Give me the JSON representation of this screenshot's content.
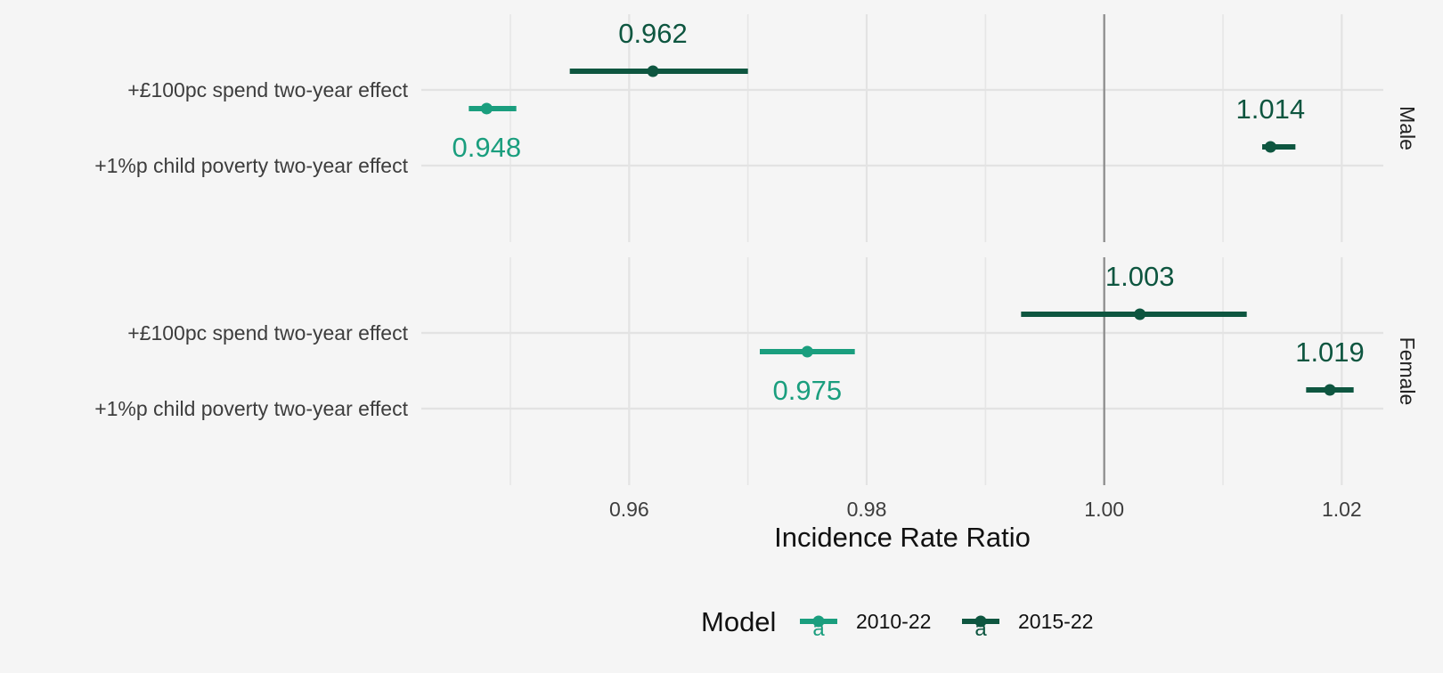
{
  "chart_data": {
    "type": "forest",
    "x_axis": {
      "label": "Incidence Rate Ratio",
      "range": [
        0.9425,
        1.0235
      ],
      "ticks": [
        0.96,
        0.98,
        1.0,
        1.02
      ],
      "tick_labels": [
        "0.96",
        "0.98",
        "1.00",
        "1.02"
      ],
      "reference_line": 1.0
    },
    "categories": [
      "+£100pc spend two-year effect",
      "+1%p child poverty two-year effect"
    ],
    "panels": [
      {
        "label": "Male",
        "points": [
          {
            "category": "+£100pc spend two-year effect",
            "model": "2010-22",
            "estimate": 0.948,
            "ci": [
              0.9465,
              0.9505
            ],
            "label": "0.948"
          },
          {
            "category": "+£100pc spend two-year effect",
            "model": "2015-22",
            "estimate": 0.962,
            "ci": [
              0.955,
              0.97
            ],
            "label": "0.962"
          },
          {
            "category": "+1%p child poverty two-year effect",
            "model": "2015-22",
            "estimate": 1.014,
            "ci": [
              1.0133,
              1.0161
            ],
            "label": "1.014"
          }
        ]
      },
      {
        "label": "Female",
        "points": [
          {
            "category": "+£100pc spend two-year effect",
            "model": "2010-22",
            "estimate": 0.975,
            "ci": [
              0.971,
              0.979
            ],
            "label": "0.975"
          },
          {
            "category": "+£100pc spend two-year effect",
            "model": "2015-22",
            "estimate": 1.003,
            "ci": [
              0.993,
              1.012
            ],
            "label": "1.003"
          },
          {
            "category": "+1%p child poverty two-year effect",
            "model": "2015-22",
            "estimate": 1.019,
            "ci": [
              1.017,
              1.021
            ],
            "label": "1.019"
          }
        ]
      }
    ],
    "legend": {
      "title": "Model",
      "position": "bottom",
      "glyph": "a",
      "entries": [
        {
          "name": "2010-22",
          "color": "#1a9e7e"
        },
        {
          "name": "2015-22",
          "color": "#0e5640"
        }
      ]
    },
    "grid": true
  }
}
